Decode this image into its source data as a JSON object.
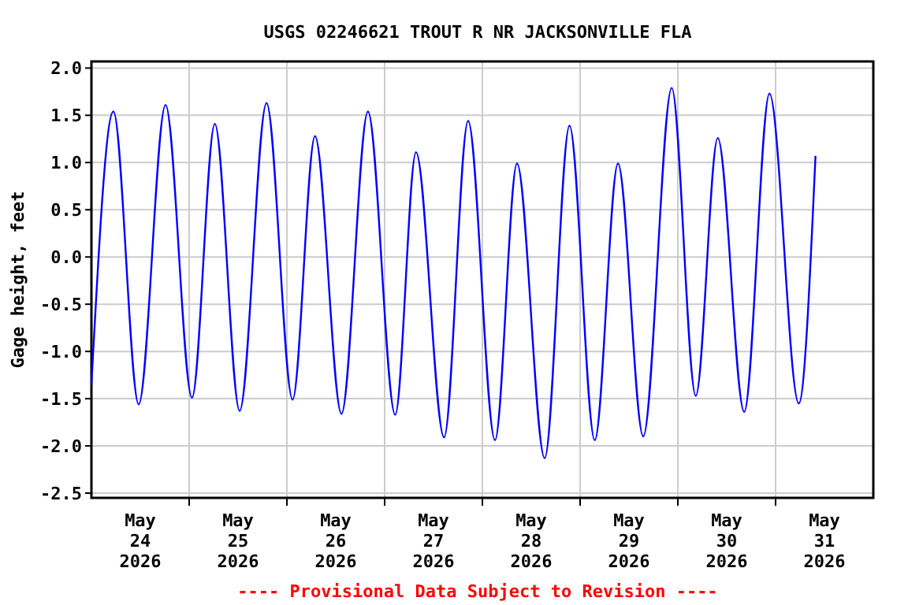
{
  "chart_data": {
    "type": "line",
    "title": "USGS 02246621 TROUT R NR JACKSONVILLE FLA",
    "ylabel": "Gage height, feet",
    "annotations": [
      "---- Provisional Data Subject to Revision ----"
    ],
    "x": [
      "2026-05-24T00:00",
      "2026-05-24T05:24",
      "2026-05-24T11:36",
      "2026-05-24T18:12",
      "2026-05-25T00:42",
      "2026-05-25T06:18",
      "2026-05-25T12:24",
      "2026-05-25T19:00",
      "2026-05-26T01:24",
      "2026-05-26T06:54",
      "2026-05-26T13:24",
      "2026-05-26T19:54",
      "2026-05-27T02:36",
      "2026-05-27T07:42",
      "2026-05-27T14:36",
      "2026-05-27T20:30",
      "2026-05-28T03:06",
      "2026-05-28T08:30",
      "2026-05-28T15:18",
      "2026-05-28T21:24",
      "2026-05-29T03:36",
      "2026-05-29T09:18",
      "2026-05-29T15:30",
      "2026-05-29T22:30",
      "2026-05-30T04:24",
      "2026-05-30T09:48",
      "2026-05-30T16:18",
      "2026-05-30T22:30",
      "2026-05-31T05:42",
      "2026-05-31T09:48"
    ],
    "series": [
      {
        "color": "#0000ff",
        "values": [
          -1.35,
          1.54,
          -1.56,
          1.61,
          -1.49,
          1.41,
          -1.63,
          1.63,
          -1.51,
          1.28,
          -1.66,
          1.54,
          -1.67,
          1.11,
          -1.91,
          1.44,
          -1.94,
          0.99,
          -2.13,
          1.39,
          -1.94,
          0.99,
          -1.9,
          1.79,
          -1.47,
          1.26,
          -1.64,
          1.73,
          -1.55,
          1.07
        ]
      }
    ],
    "xlim": [
      "2026-05-24T00:00",
      "2026-06-01T00:00"
    ],
    "xticks": [
      {
        "value": "2026-05-24T12:00",
        "label": "May\n24\n2026"
      },
      {
        "value": "2026-05-25T00:00",
        "label": null
      },
      {
        "value": "2026-05-25T12:00",
        "label": "May\n25\n2026"
      },
      {
        "value": "2026-05-26T00:00",
        "label": null
      },
      {
        "value": "2026-05-26T12:00",
        "label": "May\n26\n2026"
      },
      {
        "value": "2026-05-27T00:00",
        "label": null
      },
      {
        "value": "2026-05-27T12:00",
        "label": "May\n27\n2026"
      },
      {
        "value": "2026-05-28T00:00",
        "label": null
      },
      {
        "value": "2026-05-28T12:00",
        "label": "May\n28\n2026"
      },
      {
        "value": "2026-05-29T00:00",
        "label": null
      },
      {
        "value": "2026-05-29T12:00",
        "label": "May\n29\n2026"
      },
      {
        "value": "2026-05-30T00:00",
        "label": null
      },
      {
        "value": "2026-05-30T12:00",
        "label": "May\n30\n2026"
      },
      {
        "value": "2026-05-31T00:00",
        "label": null
      },
      {
        "value": "2026-05-31T12:00",
        "label": "May\n31\n2026"
      }
    ],
    "ylim": [
      -2.55,
      2.07
    ],
    "yticks": [
      {
        "value": 2,
        "label": "2.0"
      },
      {
        "value": 1.5,
        "label": "1.5"
      },
      {
        "value": 1,
        "label": "1.0"
      },
      {
        "value": 0.5,
        "label": "0.5"
      },
      {
        "value": 0,
        "label": "0.0"
      },
      {
        "value": -0.5,
        "label": "-0.5"
      },
      {
        "value": -1,
        "label": "-1.0"
      },
      {
        "value": -1.5,
        "label": "-1.5"
      },
      {
        "value": -2,
        "label": "-2.0"
      },
      {
        "value": -2.5,
        "label": "-2.5"
      }
    ],
    "grid": true,
    "line_style": "solid",
    "marker": "none"
  }
}
